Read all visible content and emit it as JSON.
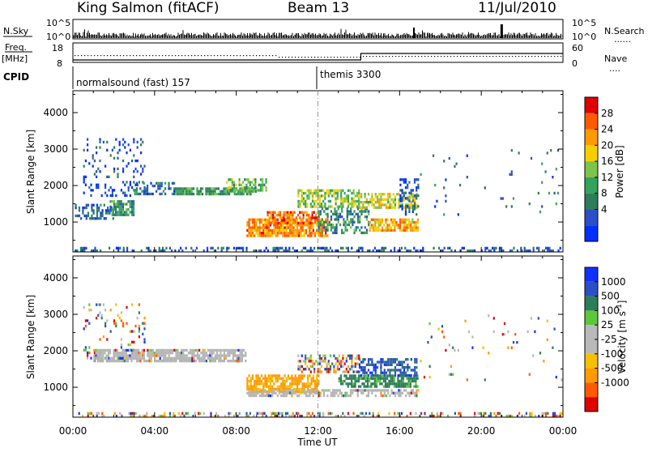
{
  "header": {
    "station": "King Salmon (fitACF)",
    "beam": "Beam 13",
    "date": "11/Jul/2010"
  },
  "top_labels": {
    "nsky": "N.Sky",
    "freq": "Freq.",
    "mhz": "[MHz]",
    "cpid": "CPID",
    "nsearch": "N.Search",
    "nave": "Nave",
    "dotted": "......",
    "dotted_short": "...."
  },
  "noise_axis": {
    "left_top": "10^5",
    "left_bottom": "10^0",
    "right_top": "10^5",
    "right_bottom": "10^0"
  },
  "freq_axis": {
    "left_top": "18",
    "left_bottom": "8",
    "right_top": "60",
    "right_bottom": "0"
  },
  "cpid": [
    {
      "label": "normalsound (fast) 157",
      "start_h": 0,
      "end_h": 12
    },
    {
      "label": "themis 3300",
      "start_h": 12,
      "end_h": 24
    }
  ],
  "colors": {
    "power": [
      "#0030ff",
      "#2a4fc8",
      "#2e7d5a",
      "#35a35a",
      "#7cc44a",
      "#f5d000",
      "#ff9a00",
      "#ff5a00",
      "#e00000"
    ],
    "velocity": [
      "#e00000",
      "#ff5a00",
      "#ff9a00",
      "#f5c000",
      "#b9b9b9",
      "#b9b9b9",
      "#5bc83a",
      "#2e7d5a",
      "#2a4fc8",
      "#1030ff"
    ],
    "ground_scatter": "#b4b4b4"
  },
  "chart_data": [
    {
      "type": "heatmap",
      "title": "Power",
      "xlabel": "Time UT",
      "ylabel": "Slant Range [km]",
      "colorbar_label": "Power [dB]",
      "x_ticks": [
        "00:00",
        "04:00",
        "08:00",
        "12:00",
        "16:00",
        "20:00",
        "00:00"
      ],
      "x_range_hours": [
        0,
        24
      ],
      "y_ticks": [
        1000,
        2000,
        3000,
        4000
      ],
      "y_range_km": [
        180,
        4600
      ],
      "colorbar_ticks": [
        "28",
        "24",
        "20",
        "16",
        "12",
        "8",
        "4"
      ],
      "colorbar_range": [
        0,
        32
      ],
      "regions": [
        {
          "t": [
            0.1,
            2.0
          ],
          "r": [
            1100,
            1500
          ],
          "v": 6,
          "d": 0.5
        },
        {
          "t": [
            0.5,
            3.5
          ],
          "r": [
            1700,
            3300
          ],
          "v": 5,
          "d": 0.15
        },
        {
          "t": [
            1.8,
            3.0
          ],
          "r": [
            1200,
            1600
          ],
          "v": 10,
          "d": 0.7
        },
        {
          "t": [
            3.0,
            5.0
          ],
          "r": [
            1800,
            2100
          ],
          "v": 8,
          "d": 0.55
        },
        {
          "t": [
            5.0,
            9.0
          ],
          "r": [
            1750,
            1950
          ],
          "v": 12,
          "d": 0.85
        },
        {
          "t": [
            7.5,
            9.5
          ],
          "r": [
            1900,
            2200
          ],
          "v": 14,
          "d": 0.6
        },
        {
          "t": [
            8.5,
            12.5
          ],
          "r": [
            600,
            1100
          ],
          "v": 24,
          "d": 0.85
        },
        {
          "t": [
            9.5,
            12.0
          ],
          "r": [
            1000,
            1300
          ],
          "v": 26,
          "d": 0.6
        },
        {
          "t": [
            11.0,
            14.0
          ],
          "r": [
            1400,
            1900
          ],
          "v": 16,
          "d": 0.6
        },
        {
          "t": [
            12.0,
            14.5
          ],
          "r": [
            700,
            1400
          ],
          "v": 10,
          "d": 0.5
        },
        {
          "t": [
            14.0,
            16.8
          ],
          "r": [
            1400,
            1800
          ],
          "v": 18,
          "d": 0.6
        },
        {
          "t": [
            14.5,
            16.9
          ],
          "r": [
            800,
            1100
          ],
          "v": 22,
          "d": 0.75
        },
        {
          "t": [
            16.0,
            16.9
          ],
          "r": [
            1200,
            2200
          ],
          "v": 5,
          "d": 0.45
        },
        {
          "t": [
            17.0,
            24.0
          ],
          "r": [
            1200,
            3000
          ],
          "v": 8,
          "d": 0.025
        },
        {
          "t": [
            0.0,
            24.0
          ],
          "r": [
            180,
            320
          ],
          "v": 6,
          "d": 0.4
        }
      ]
    },
    {
      "type": "heatmap",
      "title": "Velocity",
      "xlabel": "Time UT",
      "ylabel": "Slant Range [km]",
      "colorbar_label": "Velocity [m s^-1]",
      "x_ticks": [
        "00:00",
        "04:00",
        "08:00",
        "12:00",
        "16:00",
        "20:00",
        "00:00"
      ],
      "x_range_hours": [
        0,
        24
      ],
      "y_ticks": [
        1000,
        2000,
        3000,
        4000
      ],
      "y_range_km": [
        180,
        4600
      ],
      "colorbar_ticks": [
        "1000",
        "500",
        "100",
        "25",
        "-25",
        "-100",
        "-500",
        "-1000"
      ],
      "regions": [
        {
          "t": [
            0.5,
            3.5
          ],
          "r": [
            1700,
            3300
          ],
          "v": "mix",
          "d": 0.12
        },
        {
          "t": [
            1.0,
            8.5
          ],
          "r": [
            1750,
            2050
          ],
          "v": "gs",
          "d": 0.8
        },
        {
          "t": [
            8.5,
            12.0
          ],
          "r": [
            900,
            1350
          ],
          "v": -150,
          "d": 0.75
        },
        {
          "t": [
            8.5,
            16.9
          ],
          "r": [
            750,
            950
          ],
          "v": "gs",
          "d": 0.65
        },
        {
          "t": [
            11.0,
            14.0
          ],
          "r": [
            1400,
            1900
          ],
          "v": "mix",
          "d": 0.5
        },
        {
          "t": [
            13.0,
            16.9
          ],
          "r": [
            1050,
            1350
          ],
          "v": 150,
          "d": 0.7
        },
        {
          "t": [
            14.0,
            16.8
          ],
          "r": [
            1350,
            1800
          ],
          "v": 700,
          "d": 0.55
        },
        {
          "t": [
            17.0,
            24.0
          ],
          "r": [
            1200,
            3000
          ],
          "v": "mix",
          "d": 0.025
        },
        {
          "t": [
            0.0,
            24.0
          ],
          "r": [
            180,
            320
          ],
          "v": "mix",
          "d": 0.35
        }
      ]
    }
  ]
}
